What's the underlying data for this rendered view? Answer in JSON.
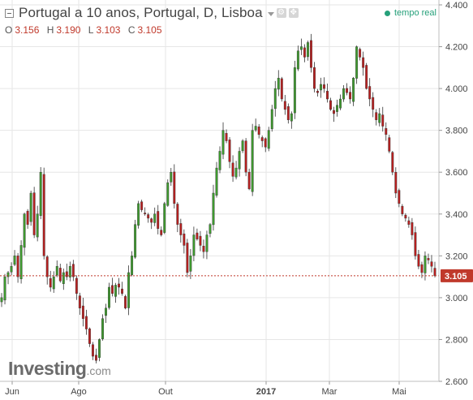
{
  "header": {
    "title": "Portugal a 10 anos, Portugal, D, Lisboa",
    "realtime_label": "tempo real",
    "ohlc": [
      {
        "key": "O",
        "value": "3.156"
      },
      {
        "key": "H",
        "value": "3.190"
      },
      {
        "key": "L",
        "value": "3.103"
      },
      {
        "key": "C",
        "value": "3.105"
      }
    ]
  },
  "logo": {
    "text": "Investing",
    "suffix": ".com"
  },
  "colors": {
    "up": "#3e9a2e",
    "down": "#b81f1f",
    "grid": "#e6e6e6",
    "price_line": "#c0392b",
    "realtime": "#26a07a"
  },
  "chart_data": {
    "type": "candlestick",
    "title": "Portugal a 10 anos, Portugal, D, Lisboa",
    "y_ticks": [
      "2.600",
      "2.800",
      "3.000",
      "3.200",
      "3.400",
      "3.600",
      "3.800",
      "4.000",
      "4.200",
      "4.400"
    ],
    "ylim": [
      2.6,
      4.4
    ],
    "x_ticks": [
      "Jun",
      "Ago",
      "Out",
      "2017",
      "Mar",
      "Mai"
    ],
    "current_price": 3.105,
    "current_price_label": "3.105",
    "grid": true,
    "closes": [
      3.0,
      3.1,
      3.12,
      3.15,
      3.2,
      3.1,
      3.25,
      3.4,
      3.35,
      3.5,
      3.3,
      3.4,
      3.6,
      3.2,
      3.1,
      3.05,
      3.1,
      3.15,
      3.08,
      3.12,
      3.1,
      3.15,
      3.1,
      3.02,
      2.95,
      2.9,
      2.85,
      2.78,
      2.72,
      2.7,
      2.8,
      2.9,
      2.95,
      3.05,
      3.02,
      3.06,
      3.05,
      3.02,
      2.95,
      3.12,
      3.2,
      3.35,
      3.45,
      3.42,
      3.4,
      3.38,
      3.36,
      3.4,
      3.33,
      3.3,
      3.45,
      3.55,
      3.6,
      3.45,
      3.35,
      3.3,
      3.25,
      3.12,
      3.2,
      3.3,
      3.28,
      3.25,
      3.22,
      3.3,
      3.35,
      3.5,
      3.62,
      3.7,
      3.8,
      3.75,
      3.65,
      3.58,
      3.62,
      3.7,
      3.75,
      3.6,
      3.52,
      3.8,
      3.82,
      3.78,
      3.75,
      3.72,
      3.8,
      3.9,
      4.0,
      4.05,
      3.95,
      3.9,
      3.85,
      3.88,
      4.1,
      4.18,
      4.2,
      4.15,
      4.22,
      4.1,
      4.0,
      3.98,
      4.02,
      4.0,
      3.95,
      3.9,
      3.88,
      3.92,
      3.95,
      4.0,
      3.98,
      3.95,
      4.05,
      4.2,
      4.15,
      4.1,
      4.0,
      3.95,
      3.9,
      3.85,
      3.88,
      3.82,
      3.78,
      3.7,
      3.6,
      3.5,
      3.45,
      3.4,
      3.38,
      3.35,
      3.3,
      3.2,
      3.15,
      3.12,
      3.2,
      3.18,
      3.15,
      3.105
    ]
  }
}
